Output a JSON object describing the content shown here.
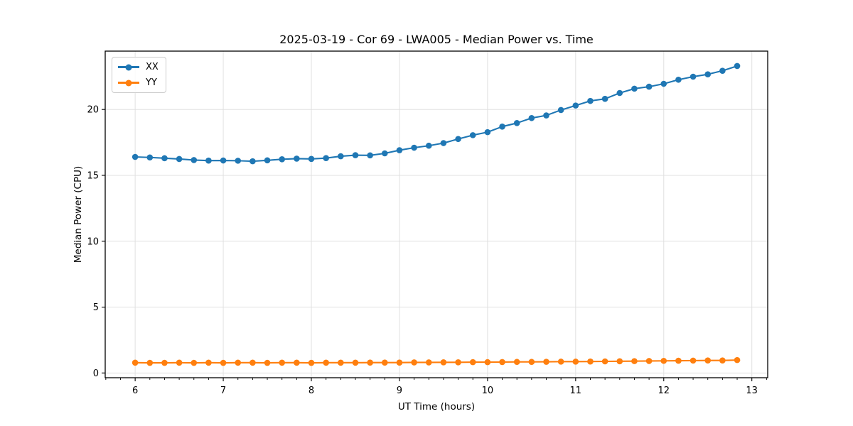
{
  "chart_data": {
    "type": "line",
    "title": "2025-03-19 - Cor 69 - LWA005 - Median Power vs. Time",
    "xlabel": "UT Time (hours)",
    "ylabel": "Median Power (CPU)",
    "grid": true,
    "legend_position": "upper-left",
    "xlim": [
      5.66,
      13.18
    ],
    "ylim": [
      -0.36,
      24.43
    ],
    "x_major_ticks": [
      6,
      7,
      8,
      9,
      10,
      11,
      12,
      13
    ],
    "x_minor_divisions": 6,
    "y_major_ticks": [
      0,
      5,
      10,
      15,
      20
    ],
    "colors": {
      "XX": "#1f77b4",
      "YY": "#ff7f0e",
      "grid": "#e0e0e0",
      "spine": "#000000",
      "text": "#000000",
      "legend_border": "#cccccc"
    },
    "x": [
      6.0,
      6.1667,
      6.3333,
      6.5,
      6.6667,
      6.8333,
      7.0,
      7.1667,
      7.3333,
      7.5,
      7.6667,
      7.8333,
      8.0,
      8.1667,
      8.3333,
      8.5,
      8.6667,
      8.8333,
      9.0,
      9.1667,
      9.3333,
      9.5,
      9.6667,
      9.8333,
      10.0,
      10.1667,
      10.3333,
      10.5,
      10.6667,
      10.8333,
      11.0,
      11.1667,
      11.3333,
      11.5,
      11.6667,
      11.8333,
      12.0,
      12.1667,
      12.3333,
      12.5,
      12.6667,
      12.8333
    ],
    "series": [
      {
        "name": "XX",
        "color_key": "XX",
        "values": [
          16.4,
          16.36,
          16.3,
          16.24,
          16.16,
          16.12,
          16.13,
          16.11,
          16.07,
          16.14,
          16.22,
          16.27,
          16.25,
          16.31,
          16.45,
          16.53,
          16.52,
          16.67,
          16.91,
          17.1,
          17.25,
          17.45,
          17.76,
          18.05,
          18.28,
          18.7,
          18.97,
          19.35,
          19.55,
          19.96,
          20.3,
          20.65,
          20.81,
          21.25,
          21.58,
          21.73,
          21.95,
          22.26,
          22.49,
          22.67,
          22.94,
          23.3
        ]
      },
      {
        "name": "YY",
        "color_key": "YY",
        "values": [
          0.78,
          0.77,
          0.77,
          0.78,
          0.77,
          0.78,
          0.77,
          0.78,
          0.78,
          0.77,
          0.78,
          0.78,
          0.77,
          0.78,
          0.78,
          0.78,
          0.79,
          0.79,
          0.79,
          0.8,
          0.8,
          0.81,
          0.81,
          0.82,
          0.82,
          0.83,
          0.84,
          0.84,
          0.85,
          0.86,
          0.86,
          0.87,
          0.88,
          0.89,
          0.9,
          0.91,
          0.92,
          0.93,
          0.94,
          0.95,
          0.95,
          0.98
        ]
      }
    ]
  }
}
